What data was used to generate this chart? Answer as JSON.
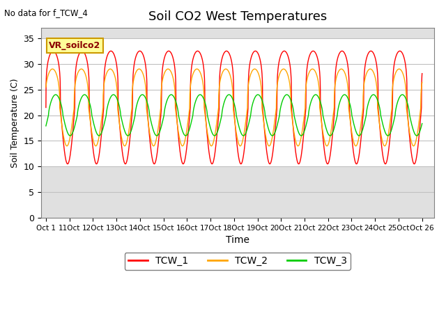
{
  "title": "Soil CO2 West Temperatures",
  "no_data_label": "No data for f_TCW_4",
  "vr_label": "VR_soilco2",
  "xlabel": "Time",
  "ylabel": "Soil Temperature (C)",
  "ylim": [
    0,
    37
  ],
  "yticks": [
    0,
    5,
    10,
    15,
    20,
    25,
    30,
    35
  ],
  "n_days": 25,
  "period": 1.92,
  "tcw1_base": 21.5,
  "tcw1_amp": 11.0,
  "tcw1_phase": 0.0,
  "tcw1_skew": 4.0,
  "tcw2_base": 21.5,
  "tcw2_amp": 7.5,
  "tcw2_phase": 0.15,
  "tcw2_skew": 3.0,
  "tcw3_base": 20.0,
  "tcw3_amp": 4.0,
  "tcw3_phase": -0.55,
  "tcw3_skew": 1.5,
  "legend_entries": [
    "TCW_1",
    "TCW_2",
    "TCW_3"
  ],
  "line_colors": [
    "#FF0000",
    "#FFA500",
    "#00CC00"
  ],
  "plot_bg_color": "#E0E0E0",
  "white_band_min": 10,
  "white_band_max": 35,
  "x_tick_positions": [
    0,
    1,
    2,
    3,
    4,
    5,
    6,
    7,
    8,
    9,
    10,
    11,
    12,
    13,
    14,
    15,
    16
  ],
  "x_tick_labels": [
    "Oct 1",
    "11Oct",
    "12Oct",
    "13Oct",
    "14Oct",
    "15Oct",
    "16Oct",
    "17Oct",
    "18Oct",
    "19Oct",
    "20Oct",
    "21Oct",
    "22Oct",
    "23Oct",
    "24Oct",
    "25Oct",
    "Oct 26"
  ],
  "xlim": [
    -0.2,
    16.5
  ],
  "figsize": [
    6.4,
    4.8
  ],
  "dpi": 100
}
